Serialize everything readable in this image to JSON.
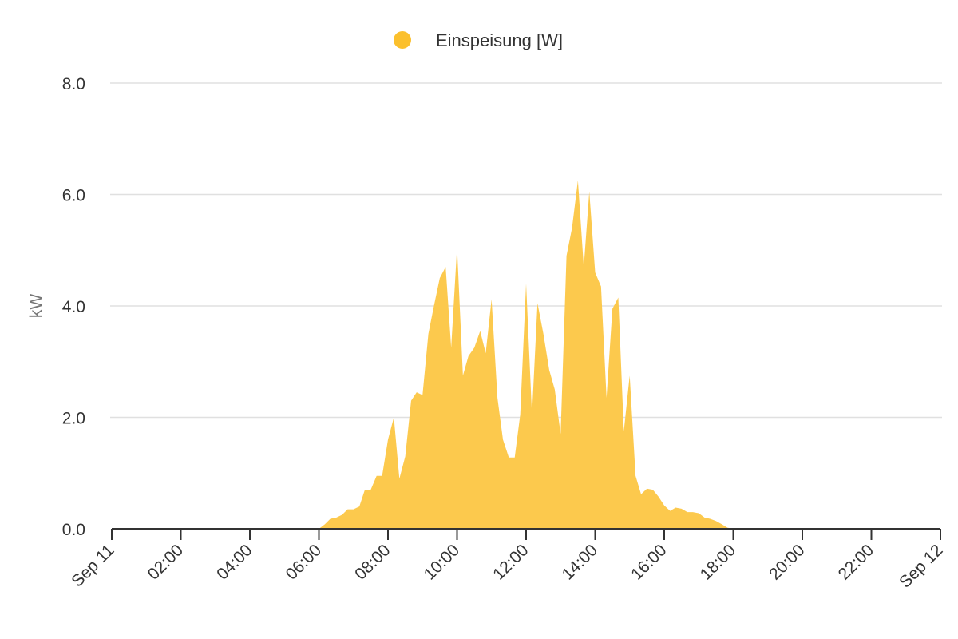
{
  "colors": {
    "series": "#fbc02d",
    "area": "#fcc94d",
    "grid": "#e0e0e0",
    "axis": "#333333",
    "text": "#333333",
    "axis_title": "#777777"
  },
  "chart_data": {
    "type": "area",
    "title": "",
    "xlabel": "",
    "ylabel": "kW",
    "legend_position": "top-center",
    "grid": true,
    "xlim": [
      0,
      24
    ],
    "ylim": [
      0,
      8
    ],
    "y_ticks": [
      0,
      2,
      4,
      6,
      8
    ],
    "y_tick_labels": [
      "0.0",
      "2.0",
      "4.0",
      "6.0",
      "8.0"
    ],
    "x_ticks": [
      0,
      2,
      4,
      6,
      8,
      10,
      12,
      14,
      16,
      18,
      20,
      22,
      24
    ],
    "x_tick_labels": [
      "Sep 11",
      "02:00",
      "04:00",
      "06:00",
      "08:00",
      "10:00",
      "12:00",
      "14:00",
      "16:00",
      "18:00",
      "20:00",
      "22:00",
      "Sep 12"
    ],
    "series": [
      {
        "name": "Einspeisung [W]",
        "x": [
          0,
          6.0,
          6.17,
          6.33,
          6.5,
          6.67,
          6.83,
          7.0,
          7.17,
          7.33,
          7.5,
          7.67,
          7.83,
          8.0,
          8.17,
          8.33,
          8.5,
          8.67,
          8.83,
          9.0,
          9.17,
          9.33,
          9.5,
          9.67,
          9.83,
          10.0,
          10.17,
          10.33,
          10.5,
          10.67,
          10.83,
          11.0,
          11.17,
          11.33,
          11.5,
          11.67,
          11.83,
          12.0,
          12.17,
          12.33,
          12.5,
          12.67,
          12.83,
          13.0,
          13.17,
          13.33,
          13.5,
          13.67,
          13.83,
          14.0,
          14.17,
          14.33,
          14.5,
          14.67,
          14.83,
          15.0,
          15.17,
          15.33,
          15.5,
          15.67,
          15.83,
          16.0,
          16.17,
          16.33,
          16.5,
          16.67,
          16.83,
          17.0,
          17.17,
          17.33,
          17.5,
          17.67,
          17.83,
          18.0,
          24
        ],
        "values": [
          0,
          0,
          0.08,
          0.18,
          0.2,
          0.25,
          0.35,
          0.35,
          0.4,
          0.7,
          0.7,
          0.95,
          0.95,
          1.6,
          2.0,
          0.9,
          1.3,
          2.3,
          2.45,
          2.4,
          3.5,
          4.0,
          4.5,
          4.7,
          3.25,
          5.05,
          2.75,
          3.1,
          3.25,
          3.55,
          3.15,
          4.12,
          2.35,
          1.6,
          1.28,
          1.28,
          2.05,
          4.4,
          2.05,
          4.05,
          3.5,
          2.85,
          2.5,
          1.7,
          4.9,
          5.4,
          6.25,
          4.7,
          6.05,
          4.6,
          4.35,
          2.35,
          3.95,
          4.15,
          1.75,
          2.75,
          0.95,
          0.62,
          0.72,
          0.7,
          0.58,
          0.42,
          0.32,
          0.38,
          0.36,
          0.3,
          0.3,
          0.28,
          0.2,
          0.18,
          0.14,
          0.08,
          0.02,
          0,
          0
        ]
      }
    ]
  }
}
